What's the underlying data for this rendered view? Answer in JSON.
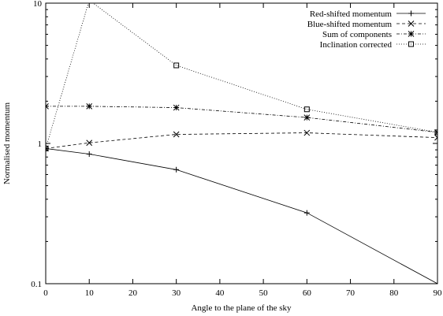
{
  "chart_data": {
    "type": "line",
    "xlabel": "Angle to the plane of the sky",
    "ylabel": "Normalised momentum",
    "xlim": [
      0,
      90
    ],
    "ylim": [
      0.1,
      10
    ],
    "yscale": "log",
    "grid": false,
    "legend_position": "top-right",
    "x_ticks": [
      0,
      10,
      20,
      30,
      40,
      50,
      60,
      70,
      80,
      90
    ],
    "y_ticks": [
      0.1,
      1,
      10
    ],
    "y_tick_labels": [
      "0.1",
      "1",
      "10"
    ],
    "series": [
      {
        "name": "Red-shifted momentum",
        "marker": "plus",
        "dash": "solid",
        "x": [
          0,
          10,
          30,
          60,
          90
        ],
        "y": [
          0.92,
          0.84,
          0.65,
          0.32,
          0.1
        ]
      },
      {
        "name": "Blue-shifted momentum",
        "marker": "cross",
        "dash": "dashed",
        "x": [
          0,
          10,
          30,
          60,
          90
        ],
        "y": [
          0.92,
          1.01,
          1.16,
          1.19,
          1.1
        ]
      },
      {
        "name": "Sum of components",
        "marker": "star",
        "dash": "dashdot",
        "x": [
          0,
          10,
          30,
          60,
          90
        ],
        "y": [
          1.84,
          1.84,
          1.8,
          1.53,
          1.2
        ]
      },
      {
        "name": "Inclination corrected",
        "marker": "square",
        "dash": "dotted",
        "x": [
          0,
          10,
          30,
          60,
          90
        ],
        "y": [
          0.92,
          10.5,
          3.6,
          1.75,
          1.2
        ]
      }
    ]
  }
}
